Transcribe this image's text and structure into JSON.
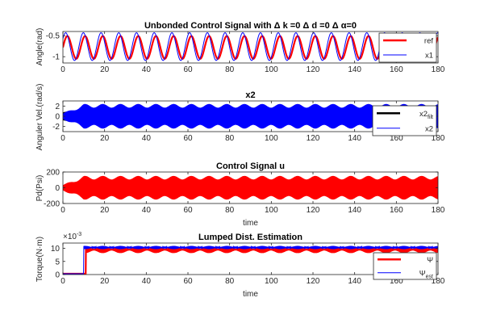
{
  "chart_data": [
    {
      "type": "line",
      "title": "Unbonded Control Signal with Δ k =0 Δ d =0 Δ α=0",
      "xlabel": "",
      "ylabel": "Angle(rad)",
      "xlim": [
        0,
        180
      ],
      "ylim": [
        -1.15,
        -0.4
      ],
      "xticks": [
        0,
        20,
        40,
        60,
        80,
        100,
        120,
        140,
        160,
        180
      ],
      "yticks": [
        -1,
        -0.5
      ],
      "ytick_labels": [
        "-1",
        "-0.5"
      ],
      "grid": false,
      "legend_position": "top-right",
      "series": [
        {
          "name": "ref",
          "color": "#ff0000",
          "kind": "sine",
          "period": 8.5,
          "center": -0.78,
          "amplitude": 0.27,
          "phase": 0,
          "start": 0
        },
        {
          "name": "x1",
          "color": "#0000ff",
          "kind": "sine",
          "period": 8.5,
          "center": -0.76,
          "amplitude": 0.33,
          "phase": 0.6,
          "start": 0
        }
      ]
    },
    {
      "type": "line",
      "title": "x2",
      "xlabel": "",
      "ylabel": "Anguler Vel.(rad/s)",
      "xlim": [
        0,
        180
      ],
      "ylim": [
        -3,
        3
      ],
      "xticks": [
        0,
        20,
        40,
        60,
        80,
        100,
        120,
        140,
        160,
        180
      ],
      "yticks": [
        -2,
        0,
        2
      ],
      "ytick_labels": [
        "-2",
        "0",
        "2"
      ],
      "grid": false,
      "legend_position": "top-right",
      "series": [
        {
          "name": "x2",
          "name_sub": "filt",
          "color": "#000000",
          "kind": "band",
          "center": 0,
          "amplitude": 0.9,
          "start": 0
        },
        {
          "name": "x2",
          "color": "#0000ff",
          "kind": "band",
          "center": 0,
          "amplitude": 2.4,
          "ramp_end": 10,
          "start": 0
        }
      ]
    },
    {
      "type": "line",
      "title": "Control Signal u",
      "xlabel": "time",
      "ylabel": "Pd(Psi)",
      "xlim": [
        0,
        180
      ],
      "ylim": [
        -200,
        200
      ],
      "xticks": [
        0,
        20,
        40,
        60,
        80,
        100,
        120,
        140,
        160,
        180
      ],
      "yticks": [
        -200,
        0,
        200
      ],
      "ytick_labels": [
        "-200",
        "0",
        "200"
      ],
      "grid": false,
      "series": [
        {
          "name": "u",
          "color": "#ff0000",
          "kind": "band",
          "center": 0,
          "amplitude": 150,
          "ramp_end": 10,
          "start": 0
        }
      ]
    },
    {
      "type": "line",
      "title": "Lumped Dist. Estimation",
      "xlabel": "time",
      "ylabel": "Torque(N·m)",
      "exponent_label": "×10",
      "exponent_power": "-3",
      "xlim": [
        0,
        180
      ],
      "ylim": [
        0,
        12
      ],
      "xticks": [
        0,
        20,
        40,
        60,
        80,
        100,
        120,
        140,
        160,
        180
      ],
      "yticks": [
        0,
        5,
        10
      ],
      "ytick_labels": [
        "0",
        "5",
        "10"
      ],
      "grid": false,
      "legend_position": "top-right",
      "series": [
        {
          "name": "Ψ",
          "color": "#ff0000",
          "kind": "step_band",
          "before": 0.3,
          "after": 9.5,
          "step_at": 11,
          "amplitude": 1.3
        },
        {
          "name": "Ψ",
          "name_sub": "est",
          "color": "#0000ff",
          "kind": "step_band",
          "before": 0.3,
          "after": 10.3,
          "step_at": 10,
          "amplitude": 0.6
        }
      ]
    }
  ]
}
